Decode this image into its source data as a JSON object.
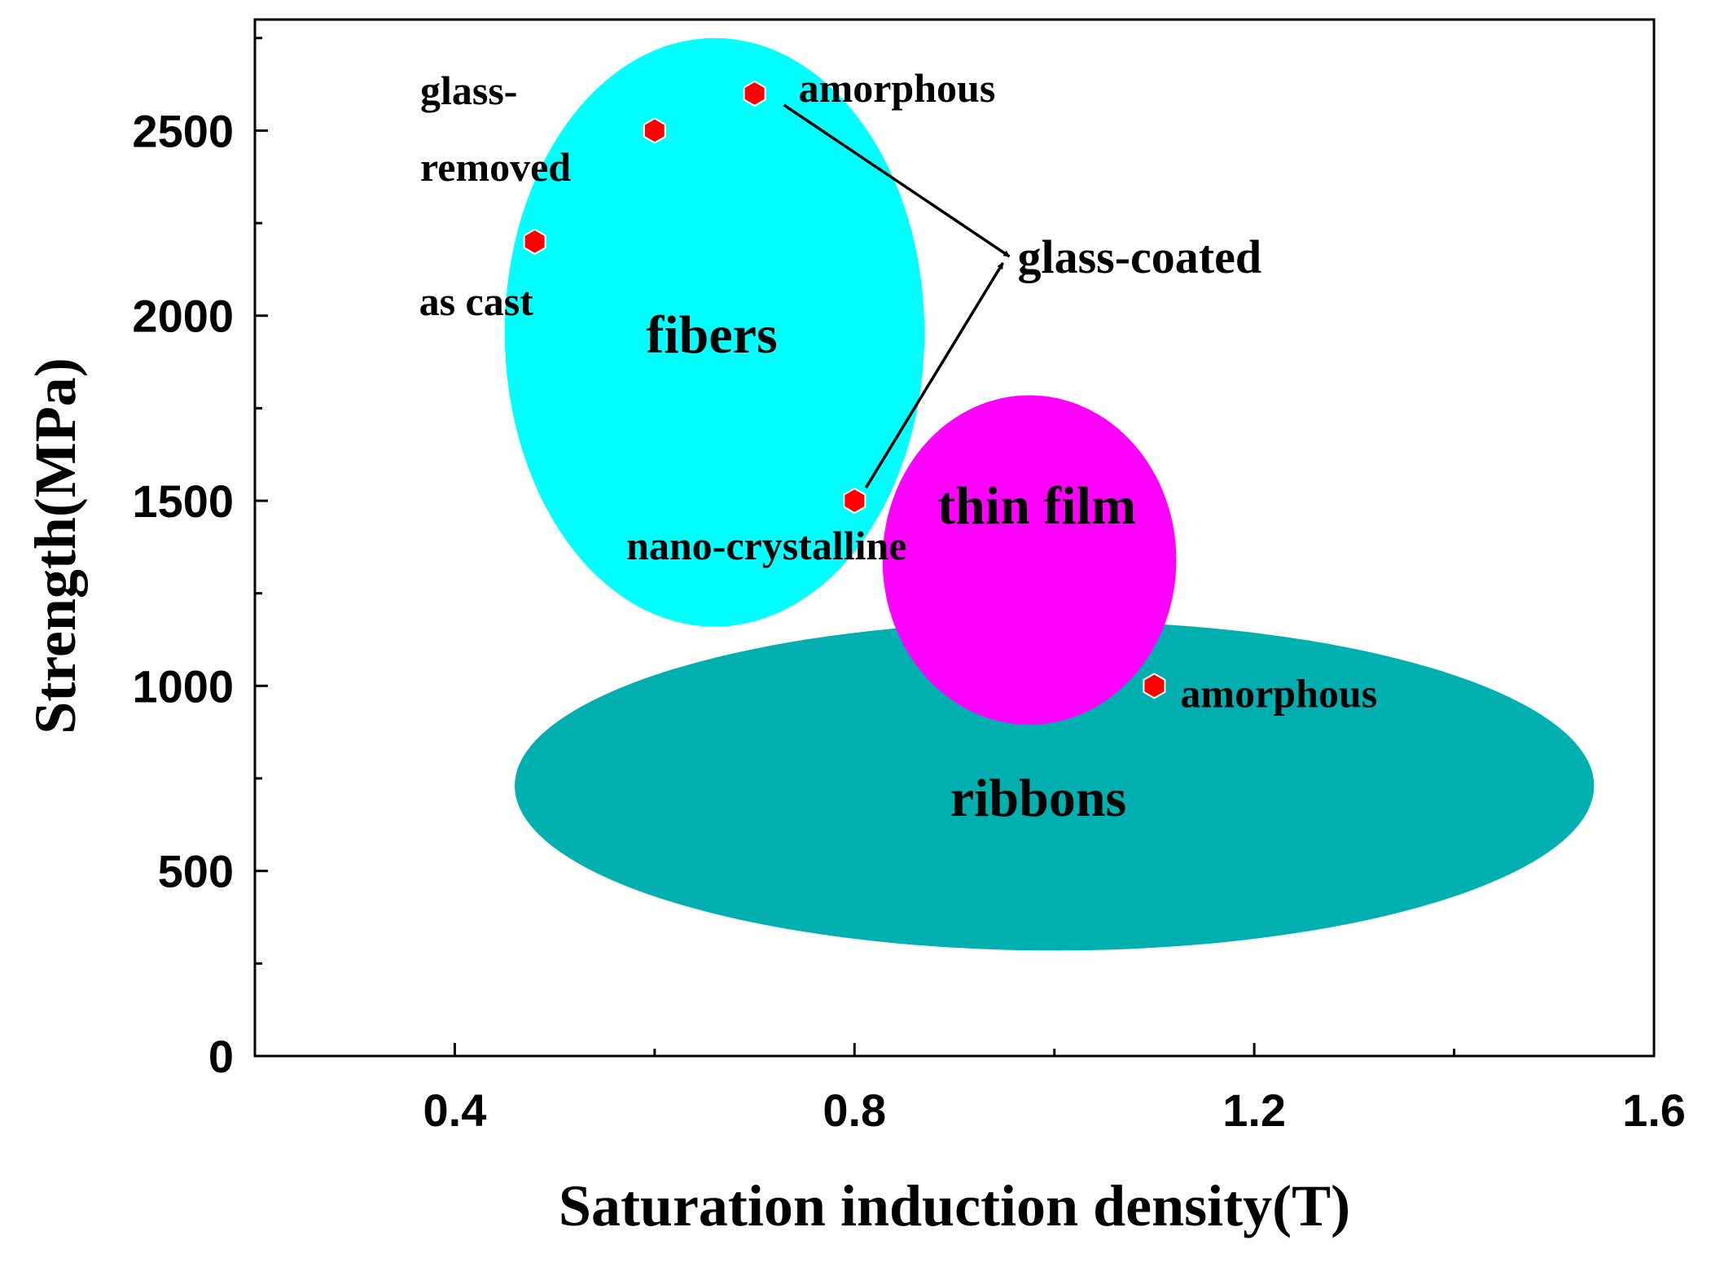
{
  "chart_data": {
    "type": "scatter",
    "title": "",
    "xlabel": "Saturation induction density(T)",
    "ylabel": "Strength(MPa)",
    "xlim": [
      0.2,
      1.6
    ],
    "ylim": [
      0,
      2800
    ],
    "x_ticks": [
      0.4,
      0.8,
      1.2,
      1.6
    ],
    "x_tick_labels": [
      "0.4",
      "0.8",
      "1.2",
      "1.6"
    ],
    "x_minor_ticks": [
      0.6,
      1.0,
      1.4
    ],
    "y_ticks": [
      0,
      500,
      1000,
      1500,
      2000,
      2500
    ],
    "y_tick_labels": [
      "0",
      "500",
      "1000",
      "1500",
      "2000",
      "2500"
    ],
    "y_minor_step": 250,
    "grid": false,
    "regions": [
      {
        "name": "fibers",
        "label": "fibers",
        "color": "#00ffff",
        "cx": 0.66,
        "cy": 1955,
        "rx": 0.21,
        "ry": 795
      },
      {
        "name": "ribbons",
        "label": "ribbons",
        "color": "#00b0b0",
        "cx": 1.0,
        "cy": 730,
        "rx": 0.54,
        "ry": 445
      },
      {
        "name": "thin-film",
        "label": "thin film",
        "color": "#ff00ff",
        "cx": 0.975,
        "cy": 1340,
        "rx": 0.147,
        "ry": 445
      }
    ],
    "points": [
      {
        "x": 0.48,
        "y": 2200,
        "label": "as cast"
      },
      {
        "x": 0.6,
        "y": 2500,
        "label": "glass-removed",
        "label_lines": [
          "glass-",
          "removed"
        ]
      },
      {
        "x": 0.7,
        "y": 2600,
        "label": "amorphous"
      },
      {
        "x": 0.8,
        "y": 1500,
        "label": "nano-crystalline"
      },
      {
        "x": 1.1,
        "y": 1000,
        "label": "amorphous"
      }
    ],
    "marker_color": "#ff0000",
    "annotations": [
      {
        "text": "glass-coated",
        "from_points": [
          2,
          3
        ],
        "arrow_to": [
          0.955,
          2160
        ]
      }
    ]
  }
}
